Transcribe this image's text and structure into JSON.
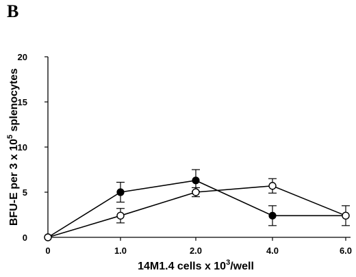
{
  "panel_label": "B",
  "chart_data": {
    "type": "line",
    "title": "",
    "xlabel_parts": [
      "14M1.4 cells x 10",
      "3",
      "/well"
    ],
    "ylabel_parts": [
      "BFU-E per 3 x 10",
      "5",
      " splenocytes"
    ],
    "x_categories": [
      "0",
      "1.0",
      "2.0",
      "4.0",
      "6.0"
    ],
    "ylim": [
      0,
      20
    ],
    "yticks": [
      0,
      5,
      10,
      15,
      20
    ],
    "grid": false,
    "legend": "none",
    "series": [
      {
        "marker": "filled",
        "color": "#000000",
        "points": [
          {
            "x": "0",
            "y": 0.0,
            "err": 0
          },
          {
            "x": "1.0",
            "y": 5.0,
            "err": 1.1
          },
          {
            "x": "2.0",
            "y": 6.3,
            "err": 1.2
          },
          {
            "x": "4.0",
            "y": 2.4,
            "err": 1.1
          },
          {
            "x": "6.0",
            "y": 2.4,
            "err": 1.1
          }
        ]
      },
      {
        "marker": "open",
        "color": "#000000",
        "points": [
          {
            "x": "0",
            "y": 0.0,
            "err": 0
          },
          {
            "x": "1.0",
            "y": 2.4,
            "err": 0.8
          },
          {
            "x": "2.0",
            "y": 5.0,
            "err": 0.5
          },
          {
            "x": "4.0",
            "y": 5.7,
            "err": 0.8
          },
          {
            "x": "6.0",
            "y": 2.4,
            "err": 0
          }
        ]
      }
    ]
  }
}
